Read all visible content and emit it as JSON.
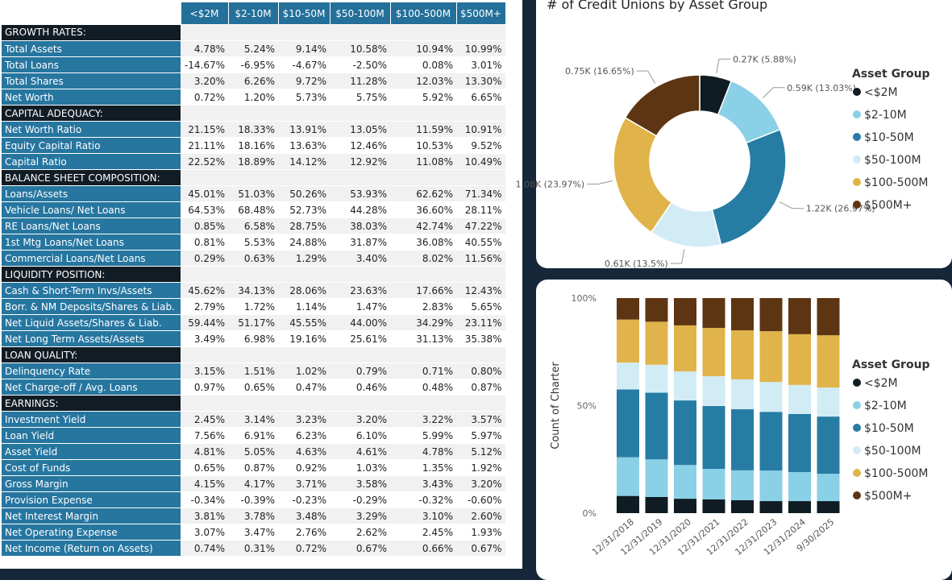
{
  "table": {
    "columns": [
      "<$2M",
      "$2-10M",
      "$10-50M",
      "$50-100M",
      "$100-500M",
      "$500M+"
    ],
    "sections": [
      {
        "title": "GROWTH RATES:",
        "rows": [
          {
            "label": "Total Assets",
            "values": [
              "4.78%",
              "5.24%",
              "9.14%",
              "10.58%",
              "10.94%",
              "10.99%"
            ]
          },
          {
            "label": "Total Loans",
            "values": [
              "-14.67%",
              "-6.95%",
              "-4.67%",
              "-2.50%",
              "0.08%",
              "3.01%"
            ]
          },
          {
            "label": "Total Shares",
            "values": [
              "3.20%",
              "6.26%",
              "9.72%",
              "11.28%",
              "12.03%",
              "13.30%"
            ]
          },
          {
            "label": "Net Worth",
            "values": [
              "0.72%",
              "1.20%",
              "5.73%",
              "5.75%",
              "5.92%",
              "6.65%"
            ]
          }
        ]
      },
      {
        "title": "CAPITAL ADEQUACY:",
        "rows": [
          {
            "label": "Net Worth Ratio",
            "values": [
              "21.15%",
              "18.33%",
              "13.91%",
              "13.05%",
              "11.59%",
              "10.91%"
            ]
          },
          {
            "label": "Equity Capital Ratio",
            "values": [
              "21.11%",
              "18.16%",
              "13.63%",
              "12.46%",
              "10.53%",
              "9.52%"
            ]
          },
          {
            "label": "Capital Ratio",
            "values": [
              "22.52%",
              "18.89%",
              "14.12%",
              "12.92%",
              "11.08%",
              "10.49%"
            ]
          }
        ]
      },
      {
        "title": "BALANCE SHEET COMPOSITION:",
        "rows": [
          {
            "label": "Loans/Assets",
            "values": [
              "45.01%",
              "51.03%",
              "50.26%",
              "53.93%",
              "62.62%",
              "71.34%"
            ]
          },
          {
            "label": "Vehicle Loans/ Net Loans",
            "values": [
              "64.53%",
              "68.48%",
              "52.73%",
              "44.28%",
              "36.60%",
              "28.11%"
            ]
          },
          {
            "label": "RE Loans/Net Loans",
            "values": [
              "0.85%",
              "6.58%",
              "28.75%",
              "38.03%",
              "42.74%",
              "47.22%"
            ]
          },
          {
            "label": "1st Mtg Loans/Net Loans",
            "values": [
              "0.81%",
              "5.53%",
              "24.88%",
              "31.87%",
              "36.08%",
              "40.55%"
            ]
          },
          {
            "label": "Commercial Loans/Net Loans",
            "values": [
              "0.29%",
              "0.63%",
              "1.29%",
              "3.40%",
              "8.02%",
              "11.56%"
            ]
          }
        ]
      },
      {
        "title": "LIQUIDITY POSITION:",
        "rows": [
          {
            "label": "Cash & Short-Term Invs/Assets",
            "values": [
              "45.62%",
              "34.13%",
              "28.06%",
              "23.63%",
              "17.66%",
              "12.43%"
            ]
          },
          {
            "label": "Borr. & NM Deposits/Shares & Liab.",
            "values": [
              "2.79%",
              "1.72%",
              "1.14%",
              "1.47%",
              "2.83%",
              "5.65%"
            ]
          },
          {
            "label": "Net Liquid Assets/Shares & Liab.",
            "values": [
              "59.44%",
              "51.17%",
              "45.55%",
              "44.00%",
              "34.29%",
              "23.11%"
            ]
          },
          {
            "label": "Net Long Term Assets/Assets",
            "values": [
              "3.49%",
              "6.98%",
              "19.16%",
              "25.61%",
              "31.13%",
              "35.38%"
            ]
          }
        ]
      },
      {
        "title": "LOAN QUALITY:",
        "rows": [
          {
            "label": "Delinquency Rate",
            "values": [
              "3.15%",
              "1.51%",
              "1.02%",
              "0.79%",
              "0.71%",
              "0.80%"
            ]
          },
          {
            "label": "Net Charge-off / Avg. Loans",
            "values": [
              "0.97%",
              "0.65%",
              "0.47%",
              "0.46%",
              "0.48%",
              "0.87%"
            ]
          }
        ]
      },
      {
        "title": "EARNINGS:",
        "rows": [
          {
            "label": "Investment Yield",
            "values": [
              "2.45%",
              "3.14%",
              "3.23%",
              "3.20%",
              "3.22%",
              "3.57%"
            ]
          },
          {
            "label": "Loan Yield",
            "values": [
              "7.56%",
              "6.91%",
              "6.23%",
              "6.10%",
              "5.99%",
              "5.97%"
            ]
          },
          {
            "label": "Asset Yield",
            "values": [
              "4.81%",
              "5.05%",
              "4.63%",
              "4.61%",
              "4.78%",
              "5.12%"
            ]
          },
          {
            "label": "Cost of Funds",
            "values": [
              "0.65%",
              "0.87%",
              "0.92%",
              "1.03%",
              "1.35%",
              "1.92%"
            ]
          },
          {
            "label": "Gross Margin",
            "values": [
              "4.15%",
              "4.17%",
              "3.71%",
              "3.58%",
              "3.43%",
              "3.20%"
            ]
          },
          {
            "label": "Provision Expense",
            "values": [
              "-0.34%",
              "-0.39%",
              "-0.23%",
              "-0.29%",
              "-0.32%",
              "-0.60%"
            ]
          },
          {
            "label": "Net Interest Margin",
            "values": [
              "3.81%",
              "3.78%",
              "3.48%",
              "3.29%",
              "3.10%",
              "2.60%"
            ]
          },
          {
            "label": "Net Operating Expense",
            "values": [
              "3.07%",
              "3.47%",
              "2.76%",
              "2.62%",
              "2.45%",
              "1.93%"
            ]
          },
          {
            "label": "Net Income (Return on Assets)",
            "values": [
              "0.74%",
              "0.31%",
              "0.72%",
              "0.67%",
              "0.66%",
              "0.67%"
            ]
          }
        ]
      }
    ]
  },
  "chart_data": [
    {
      "type": "donut",
      "title": "# of Credit Unions by Asset Group",
      "legend_title": "Asset Group",
      "categories": [
        "<$2M",
        "$2-10M",
        "$10-50M",
        "$50-100M",
        "$100-500M",
        "$500M+"
      ],
      "values": [
        0.27,
        0.59,
        1.22,
        0.61,
        1.08,
        0.75
      ],
      "value_labels": [
        "0.27K (5.88%)",
        "0.59K (13.03%)",
        "1.22K (26.97%)",
        "0.61K (13.5%)",
        "1.08K (23.97%)",
        "0.75K (16.65%)"
      ],
      "colors": [
        "#0f1c24",
        "#8ad0e6",
        "#277ca3",
        "#d2ecf6",
        "#e0b44a",
        "#5e3513"
      ],
      "legend": "right"
    },
    {
      "type": "stacked-bar-100",
      "y_label": "Count of Charter",
      "legend_title": "Asset Group",
      "categories": [
        "12/31/2018",
        "12/31/2019",
        "12/31/2020",
        "12/31/2021",
        "12/31/2022",
        "12/31/2023",
        "12/31/2024",
        "9/30/2025"
      ],
      "ylim": [
        0,
        100
      ],
      "yticks": [
        {
          "value": 0,
          "label": "0%"
        },
        {
          "value": 50,
          "label": "50%"
        },
        {
          "value": 100,
          "label": "100%"
        }
      ],
      "series": [
        {
          "name": "<$2M",
          "color": "#0f1c24",
          "values": [
            8,
            7.5,
            6.7,
            6.4,
            6,
            5.6,
            5.6,
            5.6
          ]
        },
        {
          "name": "$2-10M",
          "color": "#8ad0e6",
          "values": [
            18,
            17.5,
            15.7,
            14.2,
            13.9,
            14.2,
            13.5,
            12.7
          ]
        },
        {
          "name": "$10-50M",
          "color": "#277ca3",
          "values": [
            31.5,
            31,
            30,
            29.2,
            28.4,
            27.3,
            27,
            26.6
          ]
        },
        {
          "name": "$50-100M",
          "color": "#d2ecf6",
          "values": [
            12.5,
            13,
            13.5,
            13.9,
            13.9,
            13.9,
            13.5,
            13.5
          ]
        },
        {
          "name": "$100-500M",
          "color": "#e0b44a",
          "values": [
            20,
            20,
            21.4,
            22.4,
            22.8,
            23.6,
            23.6,
            24.3
          ]
        },
        {
          "name": "$500M+",
          "color": "#5e3513",
          "values": [
            10,
            11,
            12.7,
            13.9,
            15,
            15.4,
            16.8,
            17.3
          ]
        }
      ],
      "legend": "right"
    }
  ]
}
